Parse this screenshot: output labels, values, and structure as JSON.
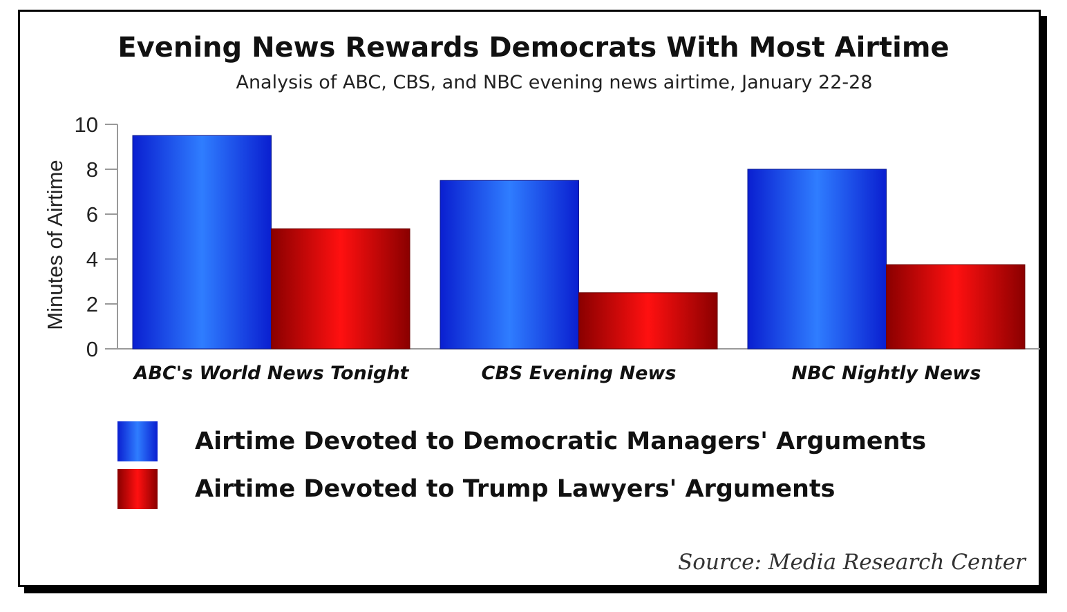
{
  "colors": {
    "series_1": "#1133ee",
    "series_2": "#cc0000",
    "axis": "#999999"
  },
  "chart_data": {
    "type": "bar",
    "title": "Evening News Rewards Democrats With Most Airtime",
    "subtitle": "Analysis of ABC, CBS, and NBC evening news airtime, January 22-28",
    "ylabel": "Minutes of Airtime",
    "xlabel": "",
    "ylim": [
      0,
      10
    ],
    "yticks": [
      0,
      2,
      4,
      6,
      8,
      10
    ],
    "categories": [
      "ABC's World News Tonight",
      "CBS Evening News",
      "NBC Nightly News"
    ],
    "series": [
      {
        "name": "Airtime Devoted to Democratic Managers' Arguments",
        "values": [
          9.5,
          7.5,
          8.0
        ]
      },
      {
        "name": "Airtime Devoted to Trump Lawyers' Arguments",
        "values": [
          5.35,
          2.5,
          3.75
        ]
      }
    ],
    "legend_position": "bottom",
    "grid": false,
    "source": "Source: Media Research Center"
  }
}
